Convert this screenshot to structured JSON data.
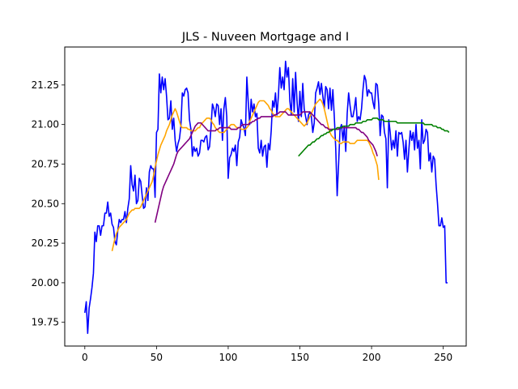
{
  "chart_data": {
    "type": "line",
    "title": "JLS - Nuveen Mortgage and I",
    "xlabel": "",
    "ylabel": "",
    "xlim": [
      -14,
      266
    ],
    "ylim": [
      19.6,
      21.49
    ],
    "x_ticks": [
      0,
      50,
      100,
      150,
      200,
      250
    ],
    "x_tick_labels": [
      "0",
      "50",
      "100",
      "150",
      "200",
      "250"
    ],
    "y_ticks": [
      19.75,
      20.0,
      20.25,
      20.5,
      20.75,
      21.0,
      21.25
    ],
    "y_tick_labels": [
      "19.75",
      "20.00",
      "20.25",
      "20.50",
      "20.75",
      "21.00",
      "21.25"
    ],
    "grid": false,
    "series": [
      {
        "color": "#0000ff",
        "x_start": 0,
        "values": [
          19.81,
          19.88,
          19.68,
          19.84,
          19.9,
          19.97,
          20.06,
          20.32,
          20.26,
          20.36,
          20.36,
          20.3,
          20.36,
          20.36,
          20.44,
          20.44,
          20.51,
          20.42,
          20.44,
          20.37,
          20.35,
          20.26,
          20.24,
          20.33,
          20.4,
          20.38,
          20.4,
          20.4,
          20.45,
          20.38,
          20.47,
          20.53,
          20.74,
          20.62,
          20.58,
          20.68,
          20.5,
          20.52,
          20.66,
          20.64,
          20.55,
          20.47,
          20.48,
          20.6,
          20.52,
          20.7,
          20.74,
          20.72,
          20.72,
          20.54,
          20.95,
          20.97,
          21.32,
          21.2,
          21.3,
          21.22,
          21.29,
          21.18,
          21.03,
          21.04,
          21.15,
          20.97,
          21.04,
          20.9,
          20.83,
          20.88,
          20.91,
          20.99,
          21.2,
          21.18,
          21.22,
          21.23,
          21.2,
          21.03,
          20.97,
          20.8,
          20.86,
          20.83,
          20.85,
          20.8,
          20.82,
          20.9,
          20.9,
          20.89,
          20.92,
          20.93,
          20.84,
          20.86,
          20.98,
          21.13,
          21.1,
          21.05,
          21.13,
          21.12,
          21.0,
          21.1,
          20.9,
          21.1,
          21.17,
          21.05,
          20.66,
          20.79,
          20.81,
          20.85,
          20.83,
          20.87,
          20.74,
          20.89,
          20.92,
          21.03,
          21.0,
          20.98,
          20.93,
          21.3,
          21.14,
          21.0,
          21.16,
          21.08,
          21.13,
          21.05,
          21.07,
          20.85,
          20.82,
          20.9,
          20.8,
          20.86,
          20.87,
          20.73,
          20.88,
          20.84,
          20.96,
          21.15,
          21.11,
          21.2,
          21.06,
          21.18,
          21.36,
          21.23,
          21.3,
          21.22,
          21.4,
          21.3,
          21.36,
          21.15,
          21.06,
          21.29,
          21.08,
          21.33,
          21.15,
          21.02,
          21.21,
          21.05,
          21.26,
          21.1,
          21.05,
          21.0,
          21.06,
          21.08,
          21.05,
          20.95,
          21.01,
          21.2,
          21.23,
          21.27,
          21.19,
          21.26,
          21.18,
          21.1,
          21.24,
          21.22,
          21.1,
          21.23,
          21.09,
          21.22,
          21.05,
          20.85,
          20.55,
          20.75,
          20.97,
          21.0,
          20.9,
          20.99,
          20.83,
          21.07,
          21.2,
          21.12,
          21.05,
          21.05,
          21.1,
          21.17,
          21.02,
          21.05,
          21.03,
          21.1,
          21.22,
          21.31,
          21.28,
          21.18,
          21.22,
          21.2,
          21.2,
          21.14,
          21.1,
          21.26,
          21.25,
          21.13,
          20.93,
          21.06,
          21.05,
          20.95,
          20.91,
          20.6,
          21.03,
          20.95,
          20.84,
          20.9,
          20.85,
          20.96,
          20.8,
          20.95,
          20.94,
          20.95,
          20.89,
          20.78,
          20.9,
          20.7,
          20.84,
          20.96,
          20.9,
          20.95,
          20.84,
          21.0,
          20.85,
          20.9,
          20.72,
          21.03,
          20.88,
          20.9,
          20.97,
          20.95,
          20.77,
          20.82,
          20.7,
          20.8,
          20.78,
          20.62,
          20.5,
          20.36,
          20.36,
          20.41,
          20.35,
          20.36,
          20.0,
          20.0
        ]
      },
      {
        "color": "#ffa500",
        "x_start": 19,
        "values": [
          20.2,
          20.24,
          20.28,
          20.31,
          20.33,
          20.35,
          20.36,
          20.37,
          20.38,
          20.39,
          20.4,
          20.42,
          20.44,
          20.45,
          20.46,
          20.46,
          20.47,
          20.47,
          20.47,
          20.47,
          20.48,
          20.5,
          20.52,
          20.54,
          20.56,
          20.58,
          20.6,
          20.62,
          20.64,
          20.68,
          20.73,
          20.77,
          20.81,
          20.84,
          20.87,
          20.89,
          20.91,
          20.93,
          20.96,
          20.98,
          21.0,
          21.03,
          21.06,
          21.08,
          21.1,
          21.08,
          21.05,
          21.02,
          20.99,
          20.98,
          20.98,
          20.98,
          20.98,
          20.97,
          20.97,
          20.96,
          20.96,
          20.96,
          20.96,
          20.97,
          20.98,
          20.98,
          21.0,
          21.01,
          21.02,
          21.03,
          21.04,
          21.04,
          21.04,
          21.03,
          21.01,
          21.0,
          20.98,
          20.97,
          20.96,
          20.95,
          20.95,
          20.95,
          20.95,
          20.96,
          20.97,
          20.98,
          20.99,
          21.0,
          21.0,
          21.0,
          20.99,
          20.98,
          20.98,
          20.98,
          20.97,
          20.97,
          20.97,
          20.97,
          20.98,
          20.99,
          21.02,
          21.04,
          21.06,
          21.08,
          21.1,
          21.12,
          21.14,
          21.15,
          21.15,
          21.15,
          21.15,
          21.14,
          21.13,
          21.12,
          21.1,
          21.09,
          21.07,
          21.06,
          21.05,
          21.05,
          21.05,
          21.05,
          21.06,
          21.07,
          21.08,
          21.09,
          21.1,
          21.1,
          21.09,
          21.08,
          21.07,
          21.06,
          21.05,
          21.04,
          21.03,
          21.02,
          21.01,
          21.0,
          20.99,
          21.0,
          21.01,
          21.03,
          21.05,
          21.07,
          21.09,
          21.11,
          21.13,
          21.14,
          21.15,
          21.16,
          21.15,
          21.13,
          21.1,
          21.06,
          21.02,
          20.98,
          20.95,
          20.93,
          20.92,
          20.91,
          20.9,
          20.9,
          20.89,
          20.88,
          20.88,
          20.89,
          20.89,
          20.89,
          20.89,
          20.89,
          20.88,
          20.88,
          20.88,
          20.88,
          20.89,
          20.9,
          20.9,
          20.9,
          20.9,
          20.9,
          20.9,
          20.9,
          20.9,
          20.89,
          20.87,
          20.85,
          20.82,
          20.8,
          20.77,
          20.74,
          20.65
        ]
      },
      {
        "color": "#800080",
        "x_start": 49,
        "values": [
          20.38,
          20.42,
          20.46,
          20.5,
          20.54,
          20.58,
          20.61,
          20.63,
          20.65,
          20.67,
          20.69,
          20.71,
          20.73,
          20.75,
          20.78,
          20.81,
          20.83,
          20.84,
          20.85,
          20.86,
          20.87,
          20.88,
          20.89,
          20.9,
          20.91,
          20.93,
          20.95,
          20.97,
          20.99,
          21.0,
          21.01,
          21.01,
          21.01,
          21.0,
          20.99,
          20.98,
          20.97,
          20.96,
          20.96,
          20.96,
          20.96,
          20.96,
          20.96,
          20.97,
          20.97,
          20.98,
          20.98,
          20.98,
          20.98,
          20.98,
          20.98,
          20.98,
          20.98,
          20.97,
          20.97,
          20.97,
          20.97,
          20.97,
          20.98,
          20.98,
          20.99,
          21.0,
          21.0,
          21.0,
          21.0,
          21.0,
          21.01,
          21.01,
          21.02,
          21.02,
          21.03,
          21.03,
          21.04,
          21.04,
          21.05,
          21.05,
          21.05,
          21.05,
          21.05,
          21.05,
          21.05,
          21.05,
          21.05,
          21.06,
          21.06,
          21.07,
          21.07,
          21.08,
          21.08,
          21.08,
          21.08,
          21.08,
          21.07,
          21.06,
          21.06,
          21.06,
          21.06,
          21.06,
          21.06,
          21.06,
          21.06,
          21.06,
          21.07,
          21.08,
          21.08,
          21.08,
          21.08,
          21.08,
          21.08,
          21.07,
          21.06,
          21.05,
          21.04,
          21.03,
          21.02,
          21.01,
          21.0,
          21.0,
          20.99,
          20.98,
          20.98,
          20.97,
          20.97,
          20.97,
          20.97,
          20.97,
          20.97,
          20.97,
          20.97,
          20.98,
          20.98,
          20.98,
          20.98,
          20.98,
          20.98,
          20.98,
          20.98,
          20.98,
          20.98,
          20.98,
          20.98,
          20.97,
          20.97,
          20.96,
          20.95,
          20.95,
          20.94,
          20.93,
          20.92,
          20.9,
          20.89,
          20.88,
          20.87,
          20.85,
          20.83,
          20.8
        ]
      },
      {
        "color": "#008000",
        "x_start": 149,
        "values": [
          20.8,
          20.81,
          20.82,
          20.83,
          20.84,
          20.85,
          20.86,
          20.87,
          20.87,
          20.88,
          20.89,
          20.89,
          20.9,
          20.91,
          20.91,
          20.92,
          20.93,
          20.93,
          20.94,
          20.94,
          20.95,
          20.95,
          20.96,
          20.96,
          20.97,
          20.97,
          20.97,
          20.98,
          20.98,
          20.98,
          20.98,
          20.99,
          20.99,
          20.99,
          20.99,
          20.99,
          21.0,
          21.0,
          21.0,
          21.0,
          21.01,
          21.01,
          21.01,
          21.01,
          21.01,
          21.02,
          21.02,
          21.02,
          21.03,
          21.03,
          21.03,
          21.03,
          21.04,
          21.04,
          21.04,
          21.04,
          21.03,
          21.03,
          21.03,
          21.03,
          21.02,
          21.02,
          21.02,
          21.02,
          21.02,
          21.02,
          21.02,
          21.02,
          21.02,
          21.01,
          21.01,
          21.01,
          21.01,
          21.01,
          21.01,
          21.01,
          21.01,
          21.01,
          21.01,
          21.01,
          21.01,
          21.01,
          21.01,
          21.01,
          21.01,
          21.01,
          21.01,
          21.01,
          21.0,
          21.0,
          21.0,
          21.0,
          21.0,
          21.0,
          20.99,
          20.99,
          20.99,
          20.98,
          20.98,
          20.98,
          20.97,
          20.97,
          20.96,
          20.96,
          20.96,
          20.95
        ]
      }
    ]
  }
}
